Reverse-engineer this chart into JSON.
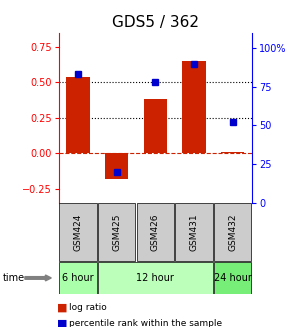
{
  "title": "GDS5 / 362",
  "samples": [
    "GSM424",
    "GSM425",
    "GSM426",
    "GSM431",
    "GSM432"
  ],
  "log_ratio": [
    0.54,
    -0.18,
    0.38,
    0.65,
    0.01
  ],
  "percentile_rank": [
    83,
    20,
    78,
    90,
    52
  ],
  "time_groups": [
    {
      "label": "6 hour",
      "cols": [
        0
      ],
      "color": "#aaffaa"
    },
    {
      "label": "12 hour",
      "cols": [
        1,
        2,
        3
      ],
      "color": "#bbffbb"
    },
    {
      "label": "24 hour",
      "cols": [
        4
      ],
      "color": "#77ee77"
    }
  ],
  "bar_color": "#cc2200",
  "dot_color": "#0000cc",
  "ylim_left": [
    -0.35,
    0.85
  ],
  "ylim_right": [
    0,
    110
  ],
  "yticks_left": [
    -0.25,
    0,
    0.25,
    0.5,
    0.75
  ],
  "yticks_right": [
    0,
    25,
    50,
    75,
    100
  ],
  "hlines": [
    0.5,
    0.25,
    0.0
  ],
  "hline_styles": [
    "dotted",
    "dotted",
    "dashed"
  ],
  "hline_colors": [
    "black",
    "black",
    "#cc2200"
  ],
  "bg_color": "#ffffff",
  "sample_bg": "#cccccc",
  "bar_width": 0.6,
  "title_fontsize": 11,
  "tick_fontsize": 7,
  "label_fontsize": 6.5,
  "sample_fontsize": 6.5,
  "time_fontsize": 7
}
